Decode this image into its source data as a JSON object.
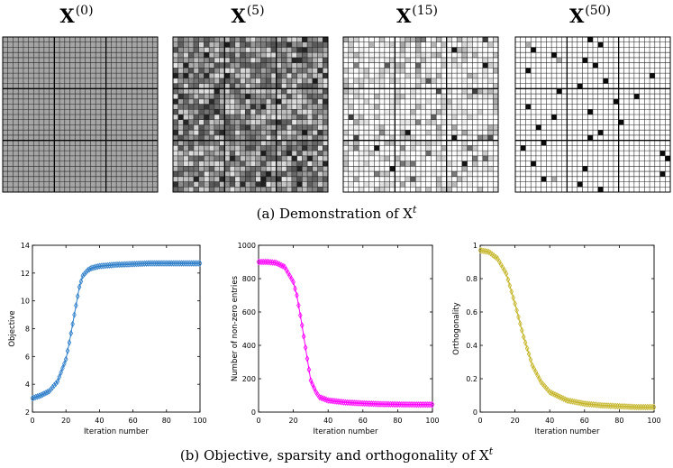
{
  "figure": {
    "caption_a": "(a) Demonstration of X",
    "caption_a_sup": "t",
    "caption_b": "(b) Objective, sparsity and orthogonality of X",
    "caption_b_sup": "t"
  },
  "matrices": [
    {
      "title_base": "X",
      "title_sup": "(0)",
      "description": "uniform"
    },
    {
      "title_base": "X",
      "title_sup": "(5)",
      "description": "dense"
    },
    {
      "title_base": "X",
      "title_sup": "(15)",
      "description": "sparsifying"
    },
    {
      "title_base": "X",
      "title_sup": "(50)",
      "description": "permutation-like"
    }
  ],
  "chart_data": [
    {
      "type": "line",
      "series": [
        {
          "values_x": [
            0,
            5,
            10,
            15,
            20,
            22,
            25,
            28,
            30,
            33,
            35,
            40,
            50,
            60,
            70,
            80,
            90,
            100
          ],
          "values_y": [
            3.0,
            3.2,
            3.5,
            4.2,
            5.8,
            7.0,
            9.0,
            11.0,
            11.8,
            12.2,
            12.35,
            12.5,
            12.6,
            12.65,
            12.7,
            12.7,
            12.7,
            12.7
          ]
        }
      ],
      "xlabel": "Iteration number",
      "ylabel": "Objective",
      "xlim": [
        0,
        100
      ],
      "ylim": [
        2,
        14
      ],
      "xticks": [
        "0",
        "20",
        "40",
        "60",
        "80",
        "100"
      ],
      "yticks": [
        "2",
        "4",
        "6",
        "8",
        "10",
        "12",
        "14"
      ],
      "color": "#2e7ec9",
      "marker": "diamond"
    },
    {
      "type": "line",
      "series": [
        {
          "values_x": [
            0,
            5,
            10,
            15,
            20,
            22,
            25,
            28,
            30,
            33,
            35,
            40,
            50,
            60,
            70,
            80,
            90,
            100
          ],
          "values_y": [
            900,
            900,
            895,
            870,
            780,
            700,
            520,
            320,
            190,
            120,
            90,
            70,
            58,
            52,
            48,
            46,
            45,
            45
          ]
        }
      ],
      "xlabel": "Iteration number",
      "ylabel": "Number of non-zero entries",
      "xlim": [
        0,
        100
      ],
      "ylim": [
        0,
        1000
      ],
      "xticks": [
        "0",
        "20",
        "40",
        "60",
        "80",
        "100"
      ],
      "yticks": [
        "0",
        "200",
        "400",
        "600",
        "800",
        "1000"
      ],
      "color": "#ff00ff",
      "marker": "diamond"
    },
    {
      "type": "line",
      "series": [
        {
          "values_x": [
            0,
            5,
            10,
            15,
            20,
            25,
            30,
            35,
            40,
            50,
            60,
            70,
            80,
            90,
            100
          ],
          "values_y": [
            0.97,
            0.96,
            0.92,
            0.83,
            0.65,
            0.45,
            0.28,
            0.18,
            0.12,
            0.07,
            0.05,
            0.04,
            0.035,
            0.03,
            0.03
          ]
        }
      ],
      "xlabel": "Iteration number",
      "ylabel": "Orthogonality",
      "xlim": [
        0,
        100
      ],
      "ylim": [
        0,
        1
      ],
      "xticks": [
        "0",
        "20",
        "40",
        "60",
        "80",
        "100"
      ],
      "yticks": [
        "0",
        "0.2",
        "0.4",
        "0.6",
        "0.8",
        "1"
      ],
      "color": "#c5b62b",
      "marker": "diamond"
    }
  ]
}
